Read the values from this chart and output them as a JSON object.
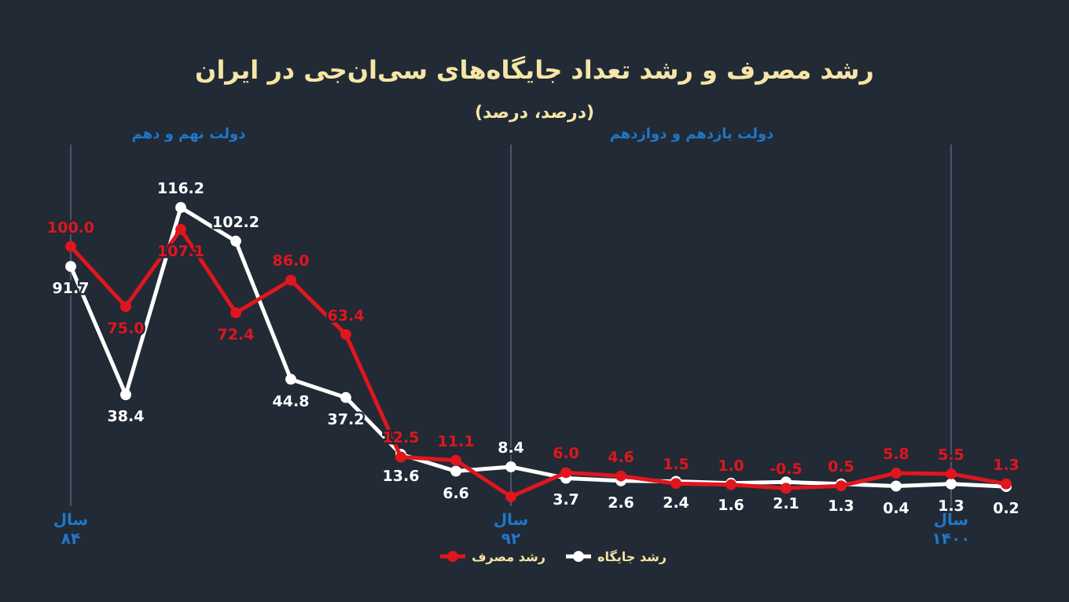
{
  "chart_data": {
    "type": "line",
    "title": "رشد مصرف و رشد تعداد جایگاه‌های سی‌ان‌جی در ایران",
    "subtitle": "(درصد، درصد)",
    "categories": [
      "سال ۸۴",
      null,
      null,
      null,
      null,
      null,
      null,
      null,
      "سال ۹۲",
      null,
      null,
      null,
      null,
      null,
      null,
      null,
      "سال ۱۴۰۰",
      null
    ],
    "series": [
      {
        "name": "رشد جایگاه",
        "color": "#ffffff",
        "values": [
          91.7,
          38.4,
          116.2,
          102.2,
          44.8,
          37.2,
          13.6,
          6.6,
          8.4,
          3.7,
          2.6,
          2.4,
          1.6,
          2.1,
          1.3,
          0.4,
          1.3,
          0.2
        ]
      },
      {
        "name": "رشد مصرف",
        "color": "#e0161e",
        "values": [
          100.0,
          75.0,
          107.1,
          72.4,
          86.0,
          63.4,
          12.5,
          11.1,
          -4,
          6.0,
          4.6,
          1.5,
          1.0,
          -0.5,
          0.5,
          5.8,
          5.5,
          1.3
        ],
        "value_labels": [
          "100.0",
          "75.0",
          "107.1",
          "72.4",
          "86.0",
          "63.4",
          "12.5",
          "11.1",
          null,
          "6.0",
          "4.6",
          "1.5",
          "1.0",
          "-0.5",
          "0.5",
          "5.8",
          "5.5",
          "1.3"
        ]
      }
    ],
    "ref_lines": [
      {
        "axis": "x",
        "value": "سال ۸۴",
        "color": "#4a5668"
      },
      {
        "axis": "x",
        "value": "سال ۹۲",
        "color": "#4a5668"
      },
      {
        "axis": "x",
        "value": "سال ۱۴۰۰",
        "color": "#4a5668"
      }
    ],
    "annotations": [
      "دولت نهم و دهم",
      "دولت یازدهم و دوازدهم"
    ],
    "data_labels": true,
    "marker": "circle",
    "line_style": "solid",
    "legend": "bottom"
  }
}
